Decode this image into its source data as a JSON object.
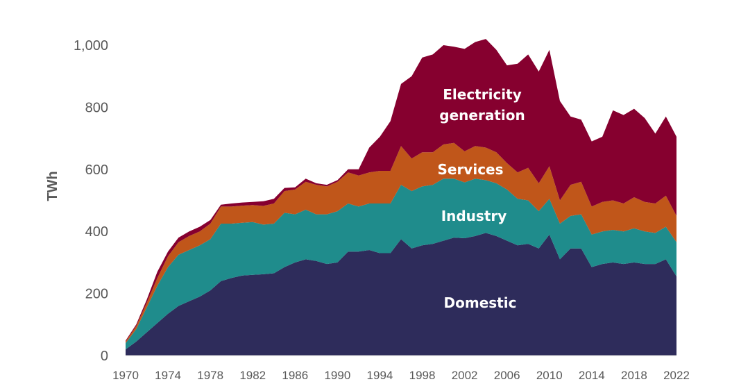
{
  "chart_data": {
    "type": "area",
    "stacked": true,
    "ylabel": "TWh",
    "xlabel": "",
    "ylim": [
      0,
      1000
    ],
    "yticks": [
      0,
      200,
      400,
      600,
      800,
      1000
    ],
    "ytick_labels": [
      "0",
      "200",
      "400",
      "600",
      "800",
      "1,000"
    ],
    "xticks": [
      1970,
      1974,
      1978,
      1982,
      1986,
      1990,
      1994,
      1998,
      2002,
      2006,
      2010,
      2014,
      2018,
      2022
    ],
    "xtick_labels": [
      "1970",
      "1974",
      "1978",
      "1982",
      "1986",
      "1990",
      "1994",
      "1998",
      "2002",
      "2006",
      "2010",
      "2014",
      "2018",
      "2022"
    ],
    "grid": false,
    "legend": "none",
    "x": [
      1970,
      1971,
      1972,
      1973,
      1974,
      1975,
      1976,
      1977,
      1978,
      1979,
      1980,
      1981,
      1982,
      1983,
      1984,
      1985,
      1986,
      1987,
      1988,
      1989,
      1990,
      1991,
      1992,
      1993,
      1994,
      1995,
      1996,
      1997,
      1998,
      1999,
      2000,
      2001,
      2002,
      2003,
      2004,
      2005,
      2006,
      2007,
      2008,
      2009,
      2010,
      2011,
      2012,
      2013,
      2014,
      2015,
      2016,
      2017,
      2018,
      2019,
      2020,
      2021,
      2022
    ],
    "series": [
      {
        "name": "Domestic",
        "color": "#2e2c5b",
        "values": [
          20,
          45,
          75,
          105,
          135,
          160,
          175,
          190,
          210,
          240,
          250,
          258,
          260,
          262,
          265,
          285,
          300,
          310,
          305,
          295,
          300,
          335,
          335,
          340,
          330,
          330,
          375,
          345,
          355,
          360,
          370,
          380,
          378,
          385,
          395,
          385,
          370,
          355,
          360,
          345,
          390,
          310,
          345,
          345,
          285,
          295,
          300,
          295,
          300,
          295,
          295,
          310,
          255
        ]
      },
      {
        "name": "Industry",
        "color": "#1f8c8c",
        "values": [
          20,
          40,
          80,
          120,
          150,
          165,
          165,
          165,
          165,
          185,
          175,
          170,
          170,
          160,
          160,
          175,
          155,
          160,
          150,
          160,
          165,
          155,
          145,
          150,
          160,
          160,
          175,
          185,
          190,
          190,
          200,
          190,
          180,
          185,
          170,
          170,
          165,
          150,
          140,
          120,
          115,
          115,
          105,
          110,
          105,
          105,
          105,
          105,
          110,
          105,
          100,
          105,
          110
        ]
      },
      {
        "name": "Services",
        "color": "#c0561a",
        "values": [
          5,
          10,
          15,
          25,
          35,
          40,
          45,
          45,
          50,
          55,
          55,
          55,
          55,
          60,
          65,
          70,
          80,
          90,
          95,
          90,
          95,
          100,
          100,
          100,
          105,
          105,
          125,
          105,
          110,
          105,
          110,
          115,
          100,
          105,
          105,
          100,
          85,
          85,
          105,
          90,
          105,
          75,
          100,
          105,
          90,
          95,
          95,
          90,
          100,
          95,
          95,
          100,
          85
        ]
      },
      {
        "name": "Electricity generation",
        "color": "#86002f",
        "values": [
          3,
          5,
          10,
          20,
          15,
          15,
          15,
          15,
          12,
          6,
          10,
          10,
          10,
          15,
          15,
          10,
          7,
          10,
          5,
          5,
          5,
          10,
          20,
          80,
          110,
          160,
          200,
          265,
          305,
          315,
          320,
          310,
          330,
          335,
          350,
          330,
          315,
          350,
          365,
          360,
          375,
          320,
          220,
          200,
          210,
          210,
          290,
          285,
          285,
          270,
          225,
          255,
          255
        ]
      }
    ],
    "annotations": [
      {
        "series": "Electricity generation",
        "lines": [
          "Electricity",
          "generation"
        ]
      },
      {
        "series": "Services",
        "lines": [
          "Services"
        ]
      },
      {
        "series": "Industry",
        "lines": [
          "Industry"
        ]
      },
      {
        "series": "Domestic",
        "lines": [
          "Domestic"
        ]
      }
    ]
  }
}
